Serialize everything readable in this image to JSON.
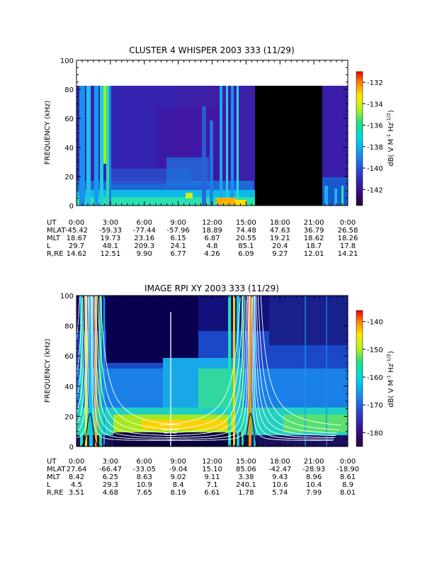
{
  "chart_data": [
    {
      "type": "heatmap",
      "title": "CLUSTER 4 WHISPER 2003 333 (11/29)",
      "ylabel": "FREQUENCY (kHz)",
      "ylim": [
        0,
        100
      ],
      "y_ticks": [
        "0",
        "20",
        "40",
        "60",
        "80",
        "100"
      ],
      "x_ticks": [
        "0:00",
        "3:00",
        "6:00",
        "9:00",
        "12:00",
        "15:00",
        "18:00",
        "21:00",
        "0:00"
      ],
      "xlim_hours": [
        0,
        24
      ],
      "data_top_khz": 80,
      "no_data_interval_hours": [
        15.6,
        21.8
      ],
      "colorbar": {
        "label_parts": [
          "dB( V M",
          "-1",
          " Hz",
          "-1/2",
          ")"
        ],
        "range": [
          -143.5,
          -131
        ],
        "ticks": [
          "-132",
          "-134",
          "-136",
          "-138",
          "-140",
          "-142"
        ],
        "tick_values": [
          -132,
          -134,
          -136,
          -138,
          -140,
          -142
        ]
      },
      "ephemeris": {
        "rows": [
          {
            "label": "UT",
            "values": [
              "0:00",
              "3:00",
              "6:00",
              "9:00",
              "12:00",
              "15:00",
              "18:00",
              "21:00",
              "0:00"
            ]
          },
          {
            "label": "MLAT",
            "values": [
              "-45.42",
              "-59.33",
              "-77.44",
              "-57.96",
              "18.89",
              "74.48",
              "47.63",
              "36.79",
              "26.58"
            ]
          },
          {
            "label": "MLT",
            "values": [
              "18.67",
              "19.73",
              "23.16",
              "6.15",
              "6.87",
              "20.55",
              "19.21",
              "18.62",
              "18.26"
            ]
          },
          {
            "label": "L",
            "values": [
              "29.7",
              "48.1",
              "209.3",
              "24.1",
              "4.8",
              "85.1",
              "20.4",
              "18.7",
              "17.8"
            ]
          },
          {
            "label": "R,RE",
            "values": [
              "14.62",
              "12.51",
              "9.90",
              "6.77",
              "4.26",
              "6.09",
              "9.27",
              "12.01",
              "14.21"
            ]
          }
        ]
      }
    },
    {
      "type": "heatmap",
      "title": "IMAGE RPI XY 2003 333 (11/29)",
      "ylabel": "FREQUENCY (kHz)",
      "ylim": [
        0,
        100
      ],
      "y_ticks": [
        "0",
        "20",
        "40",
        "60",
        "80",
        "100"
      ],
      "x_ticks": [
        "0:00",
        "3:00",
        "6:00",
        "9:00",
        "12:00",
        "15:00",
        "18:00",
        "21:00",
        "0:00"
      ],
      "xlim_hours": [
        0,
        24
      ],
      "perigee_hours": [
        1.2,
        15.4
      ],
      "colorbar": {
        "label_parts": [
          "dB( V M",
          "-1",
          " Hz",
          "-1/2",
          ")"
        ],
        "range": [
          -185,
          -136
        ],
        "ticks": [
          "-140",
          "-150",
          "-160",
          "-170",
          "-180"
        ],
        "tick_values": [
          -140,
          -150,
          -160,
          -170,
          -180
        ]
      },
      "ephemeris": {
        "rows": [
          {
            "label": "UT",
            "values": [
              "0:00",
              "3:00",
              "6:00",
              "9:00",
              "12:00",
              "15:00",
              "18:00",
              "21:00",
              "0:00"
            ]
          },
          {
            "label": "MLAT",
            "values": [
              "27.64",
              "-66.47",
              "-33.05",
              "-9.04",
              "15.10",
              "85.06",
              "-42.47",
              "-28.93",
              "-18.90"
            ]
          },
          {
            "label": "MLT",
            "values": [
              "8.42",
              "6.25",
              "8.63",
              "9.02",
              "9.11",
              "3.38",
              "9.43",
              "8.96",
              "8.61"
            ]
          },
          {
            "label": "L",
            "values": [
              "4.5",
              "29.3",
              "10.9",
              "8.4",
              "7.1",
              "240.1",
              "10.6",
              "10.4",
              "8.9"
            ]
          },
          {
            "label": "R,RE",
            "values": [
              "3.51",
              "4.68",
              "7.65",
              "8.19",
              "6.61",
              "1.78",
              "5.74",
              "7.99",
              "8.01"
            ]
          }
        ]
      }
    }
  ]
}
